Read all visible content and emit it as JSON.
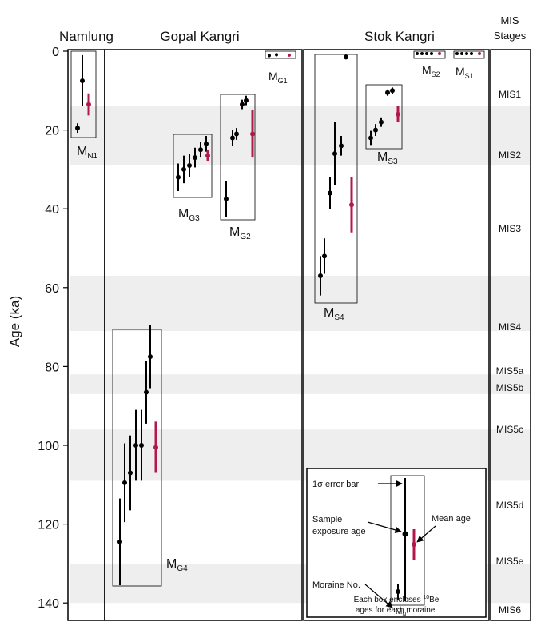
{
  "chart_data": {
    "type": "scatter",
    "ylabel": "Age (ka)",
    "yticks": [
      0,
      20,
      40,
      60,
      80,
      100,
      120,
      140
    ],
    "ylim": [
      0,
      140
    ],
    "y_reversed": true,
    "grid": false,
    "panel_titles": {
      "namlung": "Namlung",
      "gopal": "Gopal Kangri",
      "stok": "Stok Kangri",
      "mis_top": "MIS",
      "mis_bottom": "Stages"
    },
    "colors": {
      "sample": "#000000",
      "mean": "#b3184a",
      "band": "#eeeeee",
      "frame": "#000000"
    },
    "mis_stages": [
      {
        "label": "MIS1",
        "from": 0,
        "to": 14
      },
      {
        "label": "MIS2",
        "from": 14,
        "to": 29
      },
      {
        "label": "MIS3",
        "from": 29,
        "to": 57
      },
      {
        "label": "MIS4",
        "from": 57,
        "to": 71
      },
      {
        "label": "MIS5a",
        "from": 71,
        "to": 82
      },
      {
        "label": "MIS5b",
        "from": 82,
        "to": 87
      },
      {
        "label": "MIS5c",
        "from": 87,
        "to": 96
      },
      {
        "label": "MIS5d",
        "from": 96,
        "to": 109
      },
      {
        "label": "MIS5e",
        "from": 109,
        "to": 130
      },
      {
        "label": "MIS6",
        "from": 130,
        "to": 140
      }
    ],
    "moraines": [
      {
        "main": "M",
        "sub": "N1",
        "samples": [
          [
            19.5,
            1.2
          ],
          [
            7.5,
            6.5
          ]
        ],
        "mean": [
          13.5,
          2.8
        ]
      },
      {
        "main": "M",
        "sub": "G1",
        "samples": [
          [
            1.1,
            0.4
          ],
          [
            0.9,
            0.4
          ]
        ],
        "mean": [
          1.0,
          0.3
        ]
      },
      {
        "main": "M",
        "sub": "G3",
        "samples": [
          [
            32,
            3.5
          ],
          [
            30,
            3.5
          ],
          [
            29,
            3
          ],
          [
            27,
            2.5
          ],
          [
            25,
            2
          ],
          [
            23.5,
            2
          ]
        ],
        "mean": [
          26.5,
          1.5
        ]
      },
      {
        "main": "M",
        "sub": "G2",
        "samples": [
          [
            37.5,
            4.5
          ],
          [
            22,
            2
          ],
          [
            21,
            1.5
          ],
          [
            13.5,
            1.2
          ],
          [
            12.5,
            1.2
          ]
        ],
        "mean": [
          21,
          6
        ]
      },
      {
        "main": "M",
        "sub": "G4",
        "samples": [
          [
            124.5,
            11
          ],
          [
            109.5,
            10
          ],
          [
            107,
            9.5
          ],
          [
            100,
            9
          ],
          [
            100,
            9
          ],
          [
            86.5,
            8
          ],
          [
            77.5,
            8
          ]
        ],
        "mean": [
          100.5,
          6.5
        ]
      },
      {
        "main": "M",
        "sub": "S4",
        "samples": [
          [
            57,
            5
          ],
          [
            52,
            4.5
          ],
          [
            36,
            4
          ],
          [
            26,
            8
          ],
          [
            24,
            2.5
          ],
          [
            1.5,
            0.3
          ]
        ],
        "mean": [
          39,
          7
        ]
      },
      {
        "main": "M",
        "sub": "S3",
        "samples": [
          [
            22,
            1.8
          ],
          [
            20,
            1.5
          ],
          [
            18,
            1.2
          ],
          [
            10.5,
            0.8
          ],
          [
            10,
            0.8
          ]
        ],
        "mean": [
          16,
          2
        ]
      },
      {
        "main": "M",
        "sub": "S2",
        "samples": [
          [
            0.6,
            0.2
          ],
          [
            0.6,
            0.2
          ],
          [
            0.6,
            0.2
          ],
          [
            0.6,
            0.2
          ]
        ],
        "mean": [
          0.6,
          0.2
        ]
      },
      {
        "main": "M",
        "sub": "S1",
        "samples": [
          [
            0.6,
            0.2
          ],
          [
            0.6,
            0.2
          ],
          [
            0.6,
            0.2
          ],
          [
            0.6,
            0.2
          ]
        ],
        "mean": [
          0.6,
          0.2
        ]
      }
    ],
    "legend": {
      "error_bar": "1σ error bar",
      "sample_1": "Sample",
      "sample_2": "exposure age",
      "mean": "Mean age",
      "moraine_no": "Moraine No.",
      "box_main": "M",
      "box_sub": "N1",
      "note_1_pre": "Each box encloses ",
      "note_1_sup": "10",
      "note_1_post": "Be",
      "note_2": "ages for each moraine."
    }
  }
}
